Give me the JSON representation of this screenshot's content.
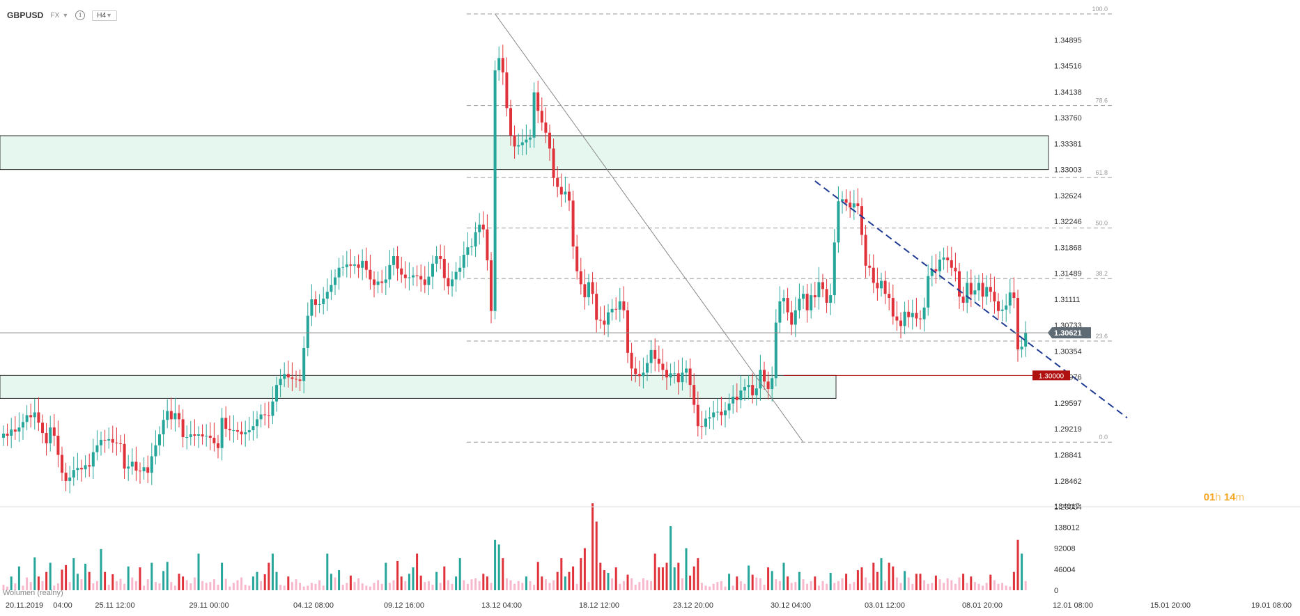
{
  "header": {
    "symbol": "GBPUSD",
    "market": "FX",
    "timeframe": "H4",
    "info_icon": "info-icon",
    "dropdown_icon": "chevron-down-icon"
  },
  "countdown": {
    "hours": "01",
    "hours_unit": "h",
    "minutes": "14",
    "minutes_unit": "m"
  },
  "volume_legend": "Wolumen (realny)",
  "colors": {
    "up": "#26a69a",
    "down": "#e0323a",
    "vol_up": "#26a69a",
    "vol_down": "#e0323a",
    "vol_light": "#f7b8cc",
    "zone_fill": "#e6f7f0",
    "zone_border": "#333333",
    "fib_line": "#999999",
    "trend_line": "#1f3a93",
    "level_line": "#b01010",
    "price_tag": "#5e6a74"
  },
  "chart_data": [
    {
      "type": "candlestick",
      "symbol": "GBPUSD",
      "timeframe": "H4",
      "ylim": [
        1.28084,
        1.35274
      ],
      "y_ticks": [
        "1.34895",
        "1.34516",
        "1.34138",
        "1.33760",
        "1.33381",
        "1.33003",
        "1.32624",
        "1.32246",
        "1.31868",
        "1.31489",
        "1.31111",
        "1.30733",
        "1.30354",
        "1.29976",
        "1.29597",
        "1.29219",
        "1.28841",
        "1.28462",
        "1.28084"
      ],
      "x_ticks": [
        "20.11.2019",
        "04:00",
        "25.11 12:00",
        "29.11 00:00",
        "04.12 08:00",
        "09.12 16:00",
        "13.12 04:00",
        "18.12 12:00",
        "23.12 20:00",
        "30.12 04:00",
        "03.01 12:00",
        "08.01 20:00",
        "12.01 08:00",
        "15.01 20:00",
        "19.01 08:00"
      ],
      "current_price": "1.30621",
      "level_price": "1.30000",
      "fibonacci": {
        "high": 1.35274,
        "low": 1.29026,
        "levels": [
          {
            "label": "100.0",
            "ratio": 1.0
          },
          {
            "label": "78.6",
            "ratio": 0.786
          },
          {
            "label": "61.8",
            "ratio": 0.618
          },
          {
            "label": "50.0",
            "ratio": 0.5
          },
          {
            "label": "38.2",
            "ratio": 0.382
          },
          {
            "label": "23.6",
            "ratio": 0.236
          },
          {
            "label": "0.0",
            "ratio": 0.0
          }
        ]
      },
      "zones": [
        {
          "from": 1.33003,
          "to": 1.33497
        },
        {
          "from": 1.29664,
          "to": 1.3
        }
      ],
      "closes": [
        1.2915,
        1.2912,
        1.2921,
        1.2918,
        1.2924,
        1.2932,
        1.2942,
        1.2939,
        1.2946,
        1.2931,
        1.2916,
        1.2901,
        1.2924,
        1.2912,
        1.2884,
        1.2858,
        1.2846,
        1.2851,
        1.2862,
        1.2865,
        1.2863,
        1.2869,
        1.2867,
        1.2888,
        1.2898,
        1.2906,
        1.2905,
        1.2907,
        1.2902,
        1.2901,
        1.29,
        1.2864,
        1.2867,
        1.2874,
        1.2861,
        1.286,
        1.2866,
        1.2858,
        1.2882,
        1.2898,
        1.2914,
        1.2935,
        1.2948,
        1.2936,
        1.2945,
        1.2936,
        1.291,
        1.291,
        1.2914,
        1.2912,
        1.2914,
        1.2911,
        1.2912,
        1.2909,
        1.2901,
        1.2894,
        1.2938,
        1.2922,
        1.292,
        1.292,
        1.2918,
        1.2914,
        1.2917,
        1.292,
        1.2926,
        1.2936,
        1.2943,
        1.2942,
        1.2941,
        1.2962,
        1.2986,
        1.2995,
        1.3002,
        1.2997,
        1.2995,
        1.2994,
        1.2992,
        1.304,
        1.3087,
        1.3111,
        1.3103,
        1.3104,
        1.3112,
        1.3122,
        1.3132,
        1.3143,
        1.3157,
        1.3158,
        1.3162,
        1.316,
        1.3162,
        1.3157,
        1.3167,
        1.3154,
        1.314,
        1.3132,
        1.3137,
        1.3135,
        1.314,
        1.3161,
        1.3174,
        1.3156,
        1.3147,
        1.3142,
        1.3143,
        1.3146,
        1.3145,
        1.314,
        1.3132,
        1.3144,
        1.3163,
        1.3174,
        1.317,
        1.3142,
        1.313,
        1.314,
        1.3151,
        1.3157,
        1.3176,
        1.3187,
        1.3188,
        1.3209,
        1.322,
        1.3213,
        1.3168,
        1.3094,
        1.3445,
        1.3463,
        1.3442,
        1.339,
        1.335,
        1.3334,
        1.3336,
        1.334,
        1.3344,
        1.3347,
        1.3413,
        1.3386,
        1.3369,
        1.3354,
        1.3331,
        1.3288,
        1.3275,
        1.3264,
        1.3268,
        1.3255,
        1.3188,
        1.3152,
        1.3133,
        1.3114,
        1.3136,
        1.3119,
        1.3081,
        1.308,
        1.3074,
        1.3092,
        1.3097,
        1.3096,
        1.3108,
        1.3095,
        1.3033,
        1.301,
        1.3002,
        1.2999,
        1.3004,
        1.3018,
        1.3037,
        1.3024,
        1.3017,
        1.3008,
        1.2997,
        1.3003,
        1.3003,
        1.299,
        1.3004,
        1.301,
        1.2986,
        1.2957,
        1.2926,
        1.2925,
        1.2937,
        1.2939,
        1.2946,
        1.2947,
        1.2942,
        1.2949,
        1.2959,
        1.2969,
        1.2964,
        1.2978,
        1.2983,
        1.2986,
        1.2971,
        1.2981,
        1.3008,
        1.2991,
        1.298,
        1.2996,
        1.3077,
        1.3108,
        1.3113,
        1.3092,
        1.3074,
        1.3095,
        1.3112,
        1.3119,
        1.3095,
        1.3117,
        1.3114,
        1.3136,
        1.3126,
        1.3106,
        1.3117,
        1.3194,
        1.3254,
        1.3257,
        1.3252,
        1.3245,
        1.3251,
        1.3247,
        1.3205,
        1.316,
        1.3157,
        1.3135,
        1.3127,
        1.3138,
        1.3119,
        1.3113,
        1.3086,
        1.308,
        1.3072,
        1.3093,
        1.3085,
        1.3091,
        1.3083,
        1.3082,
        1.3099,
        1.3145,
        1.3155,
        1.3152,
        1.3169,
        1.3172,
        1.3168,
        1.3157,
        1.3152,
        1.3115,
        1.3106,
        1.3135,
        1.3118,
        1.3124,
        1.3135,
        1.3115,
        1.3129,
        1.3122,
        1.3108,
        1.3094,
        1.3096,
        1.3102,
        1.3121,
        1.3113,
        1.3038,
        1.3042,
        1.3062
      ],
      "volume": {
        "ylim": [
          0,
          184017
        ],
        "y_ticks": [
          "184017",
          "138012",
          "92008",
          "46004",
          "0"
        ],
        "values": [
          12000,
          8000,
          30000,
          15000,
          52000,
          10000,
          28000,
          18000,
          72000,
          30000,
          20000,
          40000,
          60000,
          10000,
          15000,
          45000,
          55000,
          18000,
          70000,
          36000,
          24000,
          58000,
          40000,
          15000,
          20000,
          90000,
          40000,
          12000,
          35000,
          20000,
          25000,
          14000,
          52000,
          28000,
          20000,
          50000,
          10000,
          24000,
          60000,
          18000,
          15000,
          42000,
          62000,
          18000,
          10000,
          36000,
          30000,
          22000,
          15000,
          28000,
          80000,
          20000,
          16000,
          18000,
          24000,
          12000,
          60000,
          25000,
          8000,
          16000,
          22000,
          28000,
          12000,
          10000,
          30000,
          40000,
          20000,
          35000,
          60000,
          80000,
          40000,
          12000,
          10000,
          30000,
          18000,
          24000,
          16000,
          8000,
          10000,
          16000,
          14000,
          22000,
          10000,
          80000,
          36000,
          28000,
          44000,
          12000,
          16000,
          32000,
          18000,
          26000,
          15000,
          10000,
          8000,
          16000,
          22000,
          14000,
          60000,
          16000,
          22000,
          64000,
          30000,
          20000,
          36000,
          50000,
          80000,
          32000,
          18000,
          20000,
          12000,
          40000,
          16000,
          52000,
          22000,
          14000,
          30000,
          70000,
          22000,
          14000,
          24000,
          26000,
          20000,
          36000,
          30000,
          16000,
          110000,
          100000,
          70000,
          26000,
          22000,
          14000,
          20000,
          16000,
          30000,
          20000,
          12000,
          62000,
          30000,
          24000,
          16000,
          22000,
          40000,
          70000,
          30000,
          40000,
          52000,
          14000,
          70000,
          92000,
          18000,
          190000,
          150000,
          60000,
          44000,
          38000,
          26000,
          50000,
          14000,
          20000,
          34000,
          26000,
          12000,
          18000,
          26000,
          22000,
          20000,
          80000,
          50000,
          50000,
          60000,
          140000,
          50000,
          60000,
          26000,
          92000,
          32000,
          52000,
          70000,
          16000,
          10000,
          8000,
          14000,
          18000,
          20000,
          8000,
          36000,
          10000,
          30000,
          20000,
          14000,
          54000,
          34000,
          28000,
          26000,
          12000,
          50000,
          42000,
          24000,
          20000,
          60000,
          30000,
          16000,
          18000,
          40000,
          24000,
          14000,
          20000,
          30000,
          10000,
          20000,
          14000,
          38000,
          16000,
          20000,
          26000,
          36000,
          14000,
          18000,
          44000,
          50000,
          28000,
          16000,
          60000,
          40000,
          70000,
          20000,
          60000,
          52000,
          28000,
          16000,
          42000,
          28000,
          14000,
          36000,
          36000,
          22000,
          14000,
          16000,
          32000,
          24000,
          16000,
          26000,
          22000,
          14000,
          28000,
          36000,
          16000,
          30000,
          18000,
          14000,
          10000,
          16000,
          34000,
          22000,
          14000,
          16000,
          10000,
          8000,
          40000,
          110000,
          80000,
          20000
        ]
      }
    }
  ]
}
